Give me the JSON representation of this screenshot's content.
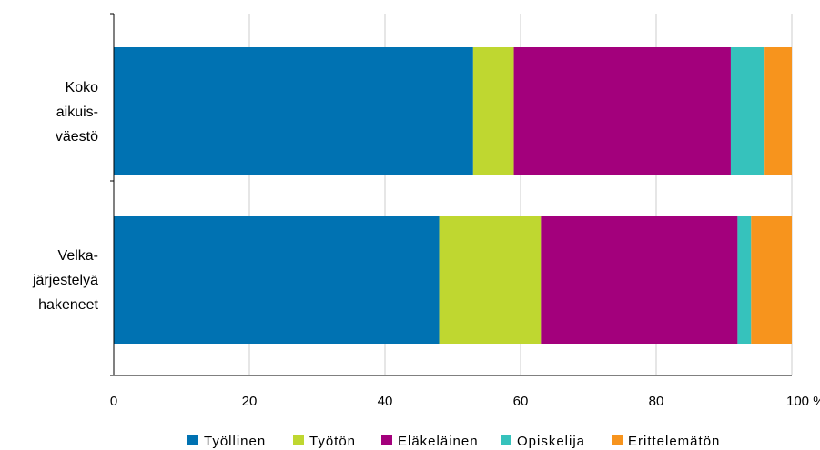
{
  "chart_data": {
    "type": "bar",
    "orientation": "horizontal",
    "stacked": true,
    "categories": [
      [
        "Koko",
        "aikuis-",
        "väestö"
      ],
      [
        "Velka-",
        "järjestelyä",
        "hakeneet"
      ]
    ],
    "series": [
      {
        "name": "Työllinen",
        "color": "#0072b2",
        "values": [
          53,
          48
        ]
      },
      {
        "name": "Työtön",
        "color": "#bfd730",
        "values": [
          6,
          15
        ]
      },
      {
        "name": "Eläkeläinen",
        "color": "#a3007c",
        "values": [
          32,
          29
        ]
      },
      {
        "name": "Opiskelija",
        "color": "#36c2bc",
        "values": [
          5,
          2
        ]
      },
      {
        "name": "Erittelemätön",
        "color": "#f7941d",
        "values": [
          4,
          6
        ]
      }
    ],
    "x_ticks": [
      "0",
      "20",
      "40",
      "60",
      "80",
      "100 %"
    ],
    "x_tick_values": [
      0,
      20,
      40,
      60,
      80,
      100
    ],
    "xlim": [
      0,
      100
    ],
    "grid": "vertical",
    "legend_position": "bottom",
    "title": "",
    "xlabel": "",
    "ylabel": ""
  }
}
